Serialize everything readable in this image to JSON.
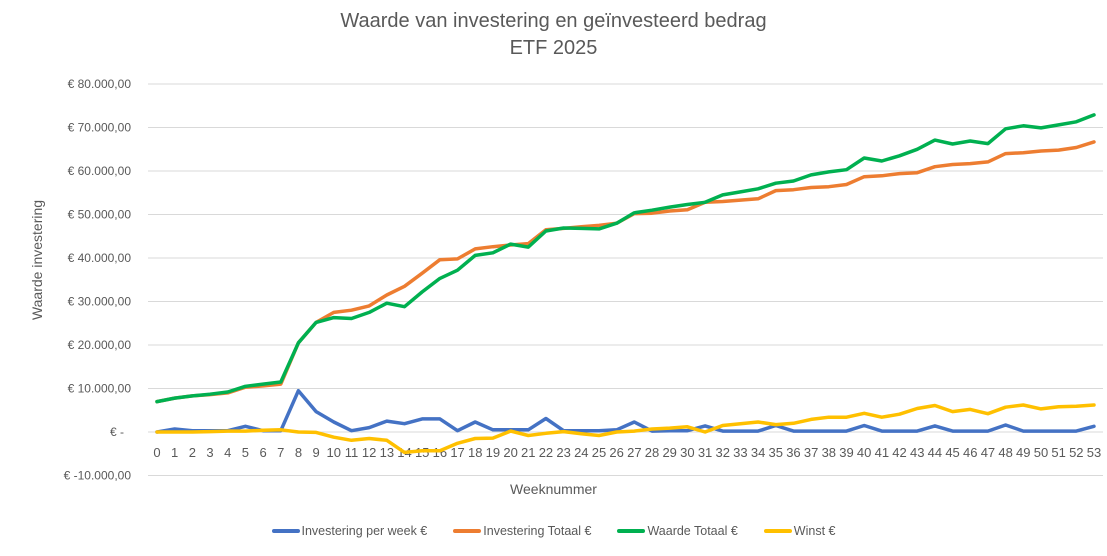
{
  "chart": {
    "title_line1": "Waarde van investering en geïnvesteerd bedrag",
    "title_line2": "ETF 2025",
    "ylabel": "Waarde investering",
    "xlabel": "Weeknummer"
  },
  "legend": [
    {
      "label": "Investering per week €",
      "color": "#4472C4"
    },
    {
      "label": "Investering Totaal €",
      "color": "#ED7D31"
    },
    {
      "label": "Waarde Totaal €",
      "color": "#00B050"
    },
    {
      "label": "Winst €",
      "color": "#FFC000"
    }
  ],
  "chart_data": {
    "type": "line",
    "title": "Waarde van investering en geïnvesteerd bedrag ETF 2025",
    "xlabel": "Weeknummer",
    "ylabel": "Waarde investering",
    "ylim": [
      -10000,
      80000
    ],
    "ytick_values": [
      80000,
      70000,
      60000,
      50000,
      40000,
      30000,
      20000,
      10000,
      0,
      -10000
    ],
    "ytick_labels": [
      "€ 80.000,00",
      "€ 70.000,00",
      "€ 60.000,00",
      "€ 50.000,00",
      "€ 40.000,00",
      "€ 30.000,00",
      "€ 20.000,00",
      "€ 10.000,00",
      "€ -",
      "€ -10.000,00"
    ],
    "grid": true,
    "legend_position": "bottom",
    "x": [
      0,
      1,
      2,
      3,
      4,
      5,
      6,
      7,
      8,
      9,
      10,
      11,
      12,
      13,
      14,
      15,
      16,
      17,
      18,
      19,
      20,
      21,
      22,
      23,
      24,
      25,
      26,
      27,
      28,
      29,
      30,
      31,
      32,
      33,
      34,
      35,
      36,
      37,
      38,
      39,
      40,
      41,
      42,
      43,
      44,
      45,
      46,
      47,
      48,
      49,
      50,
      51,
      52,
      53
    ],
    "series": [
      {
        "name": "Investering per week €",
        "color": "#4472C4",
        "values": [
          0,
          700,
          300,
          300,
          300,
          1300,
          300,
          300,
          9500,
          4700,
          2300,
          300,
          1000,
          2500,
          1900,
          3000,
          3000,
          300,
          2300,
          500,
          500,
          500,
          3100,
          300,
          300,
          300,
          500,
          2300,
          200,
          300,
          300,
          1400,
          200,
          200,
          200,
          1500,
          200,
          200,
          200,
          200,
          1500,
          200,
          200,
          200,
          1400,
          200,
          200,
          200,
          1600,
          200,
          200,
          200,
          200,
          1300
        ]
      },
      {
        "name": "Investering Totaal €",
        "color": "#ED7D31",
        "values": [
          7000,
          7800,
          8300,
          8600,
          9000,
          10300,
          10600,
          11000,
          20500,
          25200,
          27500,
          28000,
          29000,
          31500,
          33500,
          36500,
          39600,
          39800,
          42100,
          42600,
          43000,
          43300,
          46500,
          46800,
          47200,
          47500,
          48000,
          50200,
          50300,
          50800,
          51100,
          52800,
          53000,
          53300,
          53600,
          55500,
          55700,
          56200,
          56400,
          56900,
          58700,
          58900,
          59400,
          59600,
          61000,
          61500,
          61700,
          62100,
          64000,
          64200,
          64600,
          64800,
          65400,
          66700
        ]
      },
      {
        "name": "Waarde Totaal €",
        "color": "#00B050",
        "values": [
          7000,
          7800,
          8300,
          8700,
          9200,
          10500,
          11000,
          11500,
          20500,
          25200,
          26300,
          26100,
          27500,
          29600,
          28800,
          32200,
          35300,
          37200,
          40600,
          41200,
          43200,
          42500,
          46200,
          46900,
          46800,
          46700,
          48000,
          50400,
          51000,
          51700,
          52300,
          52800,
          54500,
          55200,
          55900,
          57200,
          57700,
          59100,
          59800,
          60300,
          63000,
          62300,
          63500,
          65000,
          67100,
          66200,
          66900,
          66300,
          69700,
          70400,
          69900,
          70600,
          71300,
          72900
        ]
      },
      {
        "name": "Winst €",
        "color": "#FFC000",
        "values": [
          0,
          0,
          0,
          100,
          200,
          200,
          400,
          500,
          0,
          -100,
          -1200,
          -1900,
          -1500,
          -1900,
          -4700,
          -4300,
          -4300,
          -2600,
          -1500,
          -1400,
          200,
          -800,
          -300,
          100,
          -400,
          -800,
          0,
          200,
          700,
          900,
          1200,
          0,
          1500,
          1900,
          2300,
          1700,
          2000,
          2900,
          3400,
          3400,
          4300,
          3400,
          4100,
          5400,
          6100,
          4700,
          5200,
          4200,
          5700,
          6200,
          5300,
          5800,
          5900,
          6200
        ]
      }
    ]
  }
}
